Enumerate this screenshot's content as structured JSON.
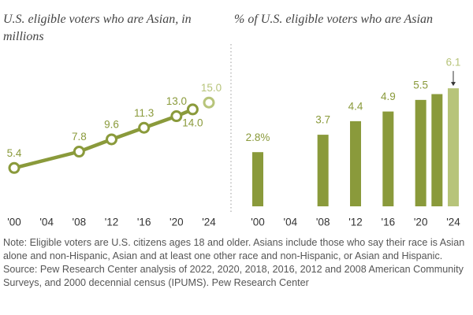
{
  "chart_data": [
    {
      "type": "line",
      "title": "U.S. eligible voters who are Asian, in millions",
      "x": [
        2000,
        2008,
        2012,
        2016,
        2020,
        2022,
        2024
      ],
      "values": [
        5.4,
        7.8,
        9.6,
        11.3,
        13.0,
        14.0,
        15.0
      ],
      "value_labels": [
        "5.4",
        "7.8",
        "9.6",
        "11.3",
        "13.0",
        "14.0",
        "15.0"
      ],
      "color": "#8a9a3b",
      "point_colors": [
        "#8a9a3b",
        "#8a9a3b",
        "#8a9a3b",
        "#8a9a3b",
        "#8a9a3b",
        "#8a9a3b",
        "#b7c47a"
      ],
      "xlim": [
        2000,
        2024
      ],
      "xticks": [
        {
          "value": 2000,
          "label": "'00"
        },
        {
          "value": 2004,
          "label": "'04"
        },
        {
          "value": 2008,
          "label": "'08"
        },
        {
          "value": 2012,
          "label": "'12"
        },
        {
          "value": 2016,
          "label": "'16"
        },
        {
          "value": 2020,
          "label": "'20"
        },
        {
          "value": 2024,
          "label": "'24"
        }
      ],
      "ylim": [
        0,
        20
      ]
    },
    {
      "type": "bar",
      "title": "% of U.S. eligible voters who are Asian",
      "x": [
        2000,
        2008,
        2012,
        2016,
        2020,
        2022,
        2024
      ],
      "values": [
        2.8,
        3.7,
        4.4,
        4.9,
        5.5,
        5.8,
        6.1
      ],
      "value_labels": [
        "2.8%",
        "3.7",
        "4.4",
        "4.9",
        "5.5",
        null,
        "6.1"
      ],
      "color": "#8a9a3b",
      "point_colors": [
        "#8a9a3b",
        "#8a9a3b",
        "#8a9a3b",
        "#8a9a3b",
        "#8a9a3b",
        "#8a9a3b",
        "#b7c47a"
      ],
      "xlim": [
        2000,
        2024
      ],
      "xticks": [
        {
          "value": 2000,
          "label": "'00"
        },
        {
          "value": 2004,
          "label": "'04"
        },
        {
          "value": 2008,
          "label": "'08"
        },
        {
          "value": 2012,
          "label": "'12"
        },
        {
          "value": 2016,
          "label": "'16"
        },
        {
          "value": 2020,
          "label": "'20"
        },
        {
          "value": 2024,
          "label": "'24"
        }
      ],
      "ylim": [
        0,
        7
      ]
    }
  ],
  "note": "Note: Eligible voters are U.S. citizens ages 18 and older. Asians include those who say their race is Asian alone and non-Hispanic, Asian and at least one other race and non-Hispanic, or Asian and Hispanic.",
  "source": "Source: Pew Research Center analysis of 2022, 2020, 2018, 2016, 2012 and 2008 American Community Surveys, and 2000 decennial census (IPUMS). Pew Research Center"
}
